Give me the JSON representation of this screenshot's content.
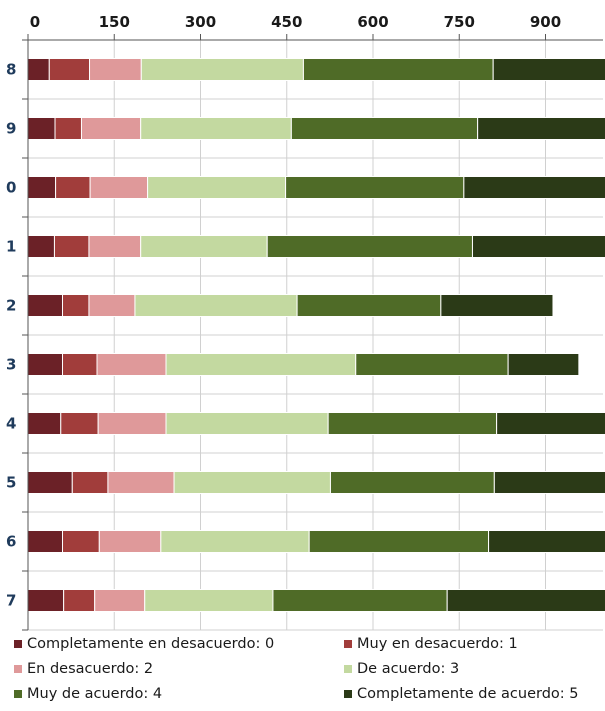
{
  "chart_data": {
    "type": "bar",
    "orientation": "horizontal",
    "stacked": true,
    "title": "",
    "xlabel": "",
    "ylabel": "",
    "xlim": [
      0,
      1000
    ],
    "x_ticks": [
      0,
      150,
      300,
      450,
      600,
      750,
      900
    ],
    "x_axis_position": "top",
    "grid": true,
    "legend_position": "bottom",
    "categories": [
      "8",
      "9",
      "0",
      "1",
      "2",
      "3",
      "4",
      "5",
      "6",
      "7"
    ],
    "series": [
      {
        "name": "Completamente en desacuerdo: 0",
        "color": "#6b2127",
        "values": [
          37,
          47,
          48,
          46,
          60,
          60,
          57,
          77,
          60,
          62
        ]
      },
      {
        "name": "Muy en desacuerdo: 1",
        "color": "#a13d3b",
        "values": [
          70,
          46,
          60,
          60,
          46,
          60,
          65,
          62,
          64,
          54
        ]
      },
      {
        "name": "En desacuerdo: 2",
        "color": "#df999a",
        "values": [
          90,
          103,
          100,
          90,
          80,
          120,
          118,
          115,
          107,
          87
        ]
      },
      {
        "name": "De acuerdo: 3",
        "color": "#c3d9a0",
        "values": [
          282,
          262,
          240,
          220,
          282,
          330,
          282,
          272,
          258,
          223
        ]
      },
      {
        "name": "Muy de acuerdo: 4",
        "color": "#4f6b27",
        "values": [
          330,
          324,
          310,
          357,
          250,
          265,
          293,
          285,
          312,
          303
        ]
      },
      {
        "name": "Completamente de acuerdo: 5",
        "color": "#2b3a17",
        "values": [
          218,
          250,
          270,
          253,
          195,
          123,
          210,
          212,
          229,
          300
        ]
      }
    ]
  }
}
